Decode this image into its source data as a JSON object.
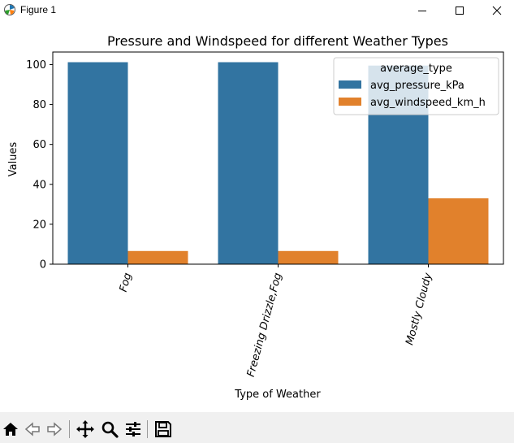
{
  "window": {
    "title": "Figure 1",
    "controls": [
      "minimize-icon",
      "maximize-icon",
      "close-icon"
    ]
  },
  "toolbar": {
    "buttons": [
      "home-icon",
      "back-icon",
      "forward-icon",
      "pan-icon",
      "zoom-icon",
      "configure-subplots-icon",
      "save-icon"
    ]
  },
  "colors": {
    "series_pressure": "#3274a1",
    "series_windspeed": "#e1812c"
  },
  "chart_data": {
    "type": "bar",
    "title": "Pressure and Windspeed for different Weather Types",
    "xlabel": "Type of Weather",
    "ylabel": "Values",
    "categories": [
      "Fog",
      "Freezing Drizzle,Fog",
      "Mostly Cloudy"
    ],
    "series": [
      {
        "name": "avg_pressure_kPa",
        "values": [
          101.2,
          101.2,
          99.5
        ]
      },
      {
        "name": "avg_windspeed_km_h",
        "values": [
          6.6,
          6.6,
          33.0
        ]
      }
    ],
    "ylim": [
      0,
      106.3
    ],
    "yticks": [
      0,
      20,
      40,
      60,
      80,
      100
    ],
    "legend": {
      "title": "average_type",
      "position": "top-right"
    },
    "grid": false
  }
}
